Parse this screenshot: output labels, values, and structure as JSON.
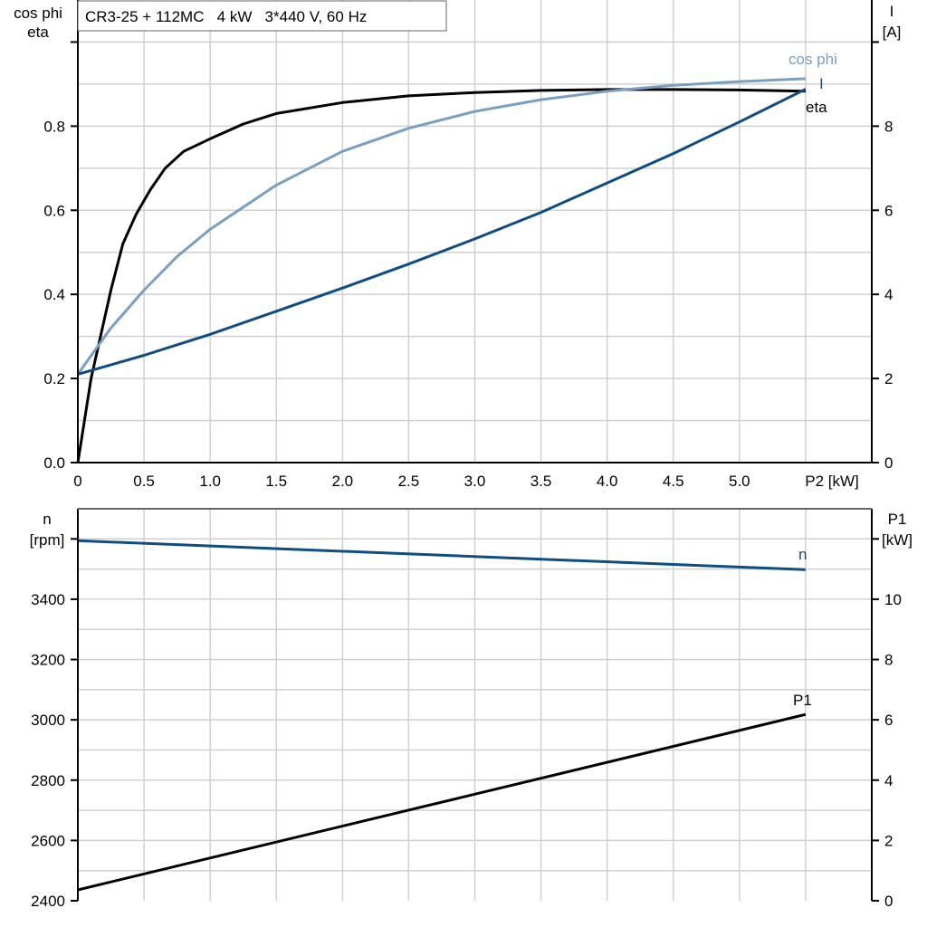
{
  "title": "CR3-25 + 112MC   4 kW   3*440 V, 60 Hz",
  "colors": {
    "eta": "#000000",
    "cos_phi": "#7b9fc0",
    "I": "#0f4c81",
    "n": "#0f4c81",
    "P1": "#000000",
    "grid": "#d0d0d0"
  },
  "chart_data": [
    {
      "type": "line",
      "title": "CR3-25 + 112MC   4 kW   3*440 V, 60 Hz",
      "xlabel": "P2 [kW]",
      "ylabel_left": [
        "cos phi",
        "eta"
      ],
      "ylabel_right": [
        "I",
        "[A]"
      ],
      "xlim": [
        0,
        6
      ],
      "ylim_left": [
        0,
        1.1
      ],
      "ylim_right": [
        0,
        11
      ],
      "x_ticks": [
        "0",
        "0.5",
        "1.0",
        "1.5",
        "2.0",
        "2.5",
        "3.0",
        "3.5",
        "4.0",
        "4.5",
        "5.0"
      ],
      "y_left_ticks": [
        "0.0",
        "0.2",
        "0.4",
        "0.6",
        "0.8"
      ],
      "y_right_ticks": [
        "0",
        "2",
        "4",
        "6",
        "8"
      ],
      "grid": true,
      "series": [
        {
          "name": "eta",
          "axis": "left",
          "x": [
            0,
            0.1,
            0.25,
            0.34,
            0.44,
            0.55,
            0.66,
            0.8,
            1.0,
            1.25,
            1.5,
            2.0,
            2.5,
            3.0,
            3.5,
            4.0,
            4.5,
            5.0,
            5.5
          ],
          "y": [
            0,
            0.2,
            0.41,
            0.52,
            0.59,
            0.65,
            0.7,
            0.74,
            0.77,
            0.805,
            0.83,
            0.856,
            0.872,
            0.88,
            0.885,
            0.887,
            0.887,
            0.886,
            0.883
          ]
        },
        {
          "name": "cos phi",
          "axis": "left",
          "x": [
            0,
            0.25,
            0.5,
            0.75,
            1.0,
            1.5,
            2.0,
            2.5,
            3.0,
            3.5,
            4.0,
            4.5,
            5.0,
            5.5
          ],
          "y": [
            0.21,
            0.32,
            0.41,
            0.49,
            0.555,
            0.66,
            0.74,
            0.795,
            0.835,
            0.863,
            0.883,
            0.897,
            0.906,
            0.913
          ]
        },
        {
          "name": "I",
          "axis": "right",
          "x": [
            0,
            0.5,
            1.0,
            1.5,
            2.0,
            2.5,
            3.0,
            3.5,
            4.0,
            4.5,
            5.0,
            5.5
          ],
          "y": [
            2.1,
            2.55,
            3.05,
            3.6,
            4.15,
            4.72,
            5.32,
            5.95,
            6.65,
            7.35,
            8.1,
            8.88
          ]
        }
      ]
    },
    {
      "type": "line",
      "ylabel_left": [
        "n",
        "[rpm]"
      ],
      "ylabel_right": [
        "P1",
        "[kW]"
      ],
      "xlim": [
        0,
        6
      ],
      "ylim_left": [
        2400,
        3700
      ],
      "ylim_right": [
        0,
        13
      ],
      "y_left_ticks": [
        "2400",
        "2600",
        "2800",
        "3000",
        "3200",
        "3400"
      ],
      "y_right_ticks": [
        "0",
        "2",
        "4",
        "6",
        "8",
        "10"
      ],
      "grid": true,
      "series": [
        {
          "name": "n",
          "axis": "left",
          "x": [
            0,
            5.5
          ],
          "y": [
            3594,
            3498
          ]
        },
        {
          "name": "P1",
          "axis": "right",
          "x": [
            0,
            5.5
          ],
          "y": [
            0.36,
            6.18
          ]
        }
      ]
    }
  ]
}
